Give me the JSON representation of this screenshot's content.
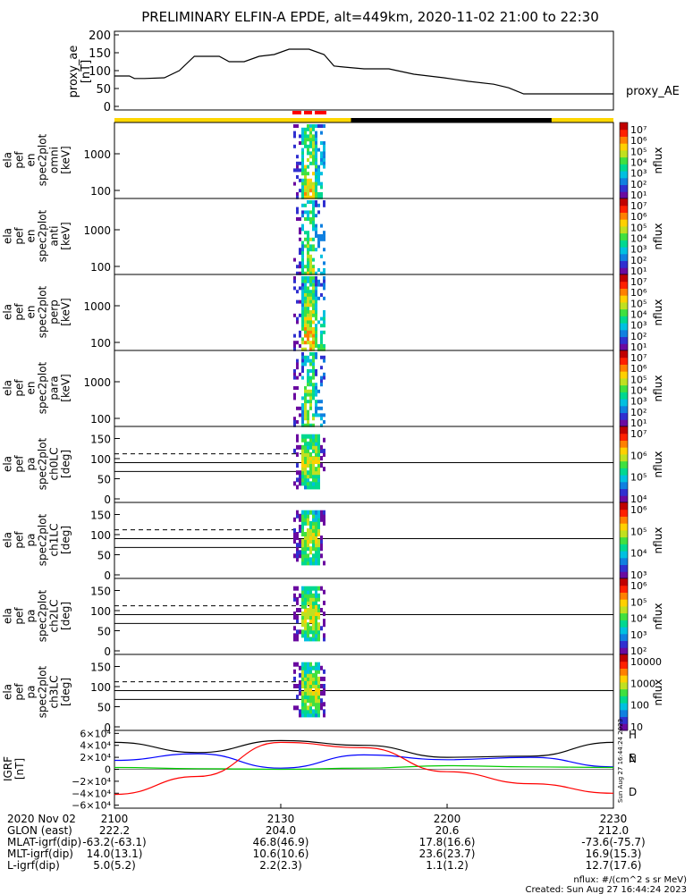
{
  "title": "PRELIMINARY ELFIN-A EPDE, alt=449km, 2020-11-02 21:00 to 22:30",
  "colors": {
    "sunlight_bar": "#ffd700",
    "shadow_bar": "#000000",
    "science_zone": "#ff0000",
    "h_component": "#000000",
    "n_component": "#0000ff",
    "e_component": "#00cc00",
    "d_component": "#ff0000"
  },
  "colorbar_colors": [
    "#ffffff",
    "#6a0aa0",
    "#3030d0",
    "#1080e0",
    "#00c0e0",
    "#00d890",
    "#40e040",
    "#c0e020",
    "#ffd000",
    "#ff8000",
    "#ff2000",
    "#c00000"
  ],
  "proxy_ae": {
    "ylabel": "proxy_ae",
    "unit": "[nT]",
    "series_label": "proxy_AE",
    "yticks": [
      "200",
      "150",
      "100",
      "50",
      "0"
    ],
    "ylim": [
      -10,
      210
    ],
    "x": [
      0,
      0.03,
      0.04,
      0.06,
      0.1,
      0.13,
      0.16,
      0.18,
      0.21,
      0.23,
      0.26,
      0.29,
      0.32,
      0.35,
      0.36,
      0.39,
      0.42,
      0.44,
      0.46,
      0.5,
      0.55,
      0.6,
      0.66,
      0.71,
      0.76,
      0.79,
      0.82,
      0.86,
      0.9,
      1.0
    ],
    "y": [
      85,
      85,
      78,
      78,
      80,
      100,
      140,
      140,
      140,
      125,
      125,
      140,
      145,
      160,
      160,
      160,
      145,
      113,
      110,
      105,
      105,
      90,
      80,
      70,
      62,
      52,
      35,
      35,
      35,
      35
    ]
  },
  "spec_panels": [
    {
      "ylabel": [
        "ela",
        "pef",
        "en",
        "spec2plot",
        "omni"
      ],
      "unit": "[keV]",
      "yticks": [
        "1000",
        "100"
      ],
      "cbar_label": "nflux",
      "cbar_ticks": [
        "10⁷",
        "10⁶",
        "10⁵",
        "10⁴",
        "10³",
        "10²",
        "10¹"
      ]
    },
    {
      "ylabel": [
        "ela",
        "pef",
        "en",
        "spec2plot",
        "anti"
      ],
      "unit": "[keV]",
      "yticks": [
        "1000",
        "100"
      ],
      "cbar_label": "nflux",
      "cbar_ticks": [
        "10⁷",
        "10⁶",
        "10⁵",
        "10⁴",
        "10³",
        "10²",
        "10¹"
      ]
    },
    {
      "ylabel": [
        "ela",
        "pef",
        "en",
        "spec2plot",
        "perp"
      ],
      "unit": "[keV]",
      "yticks": [
        "1000",
        "100"
      ],
      "cbar_label": "nflux",
      "cbar_ticks": [
        "10⁷",
        "10⁶",
        "10⁵",
        "10⁴",
        "10³",
        "10²",
        "10¹"
      ]
    },
    {
      "ylabel": [
        "ela",
        "pef",
        "en",
        "spec2plot",
        "para"
      ],
      "unit": "[keV]",
      "yticks": [
        "1000",
        "100"
      ],
      "cbar_label": "nflux",
      "cbar_ticks": [
        "10⁷",
        "10⁶",
        "10⁵",
        "10⁴",
        "10³",
        "10²",
        "10¹"
      ]
    }
  ],
  "pa_panels": [
    {
      "ylabel": [
        "ela",
        "pef",
        "pa",
        "spec2plot",
        "ch0LC"
      ],
      "unit": "[deg]",
      "yticks": [
        "150",
        "100",
        "50",
        "0"
      ],
      "cbar_label": "nflux",
      "cbar_ticks": [
        "10⁷",
        "10⁶",
        "10⁵",
        "10⁴"
      ]
    },
    {
      "ylabel": [
        "ela",
        "pef",
        "pa",
        "spec2plot",
        "ch1LC"
      ],
      "unit": "[deg]",
      "yticks": [
        "150",
        "100",
        "50",
        "0"
      ],
      "cbar_label": "nflux",
      "cbar_ticks": [
        "10⁶",
        "10⁵",
        "10⁴",
        "10³"
      ]
    },
    {
      "ylabel": [
        "ela",
        "pef",
        "pa",
        "spec2plot",
        "ch2LC"
      ],
      "unit": "[deg]",
      "yticks": [
        "150",
        "100",
        "50",
        "0"
      ],
      "cbar_label": "nflux",
      "cbar_ticks": [
        "10⁶",
        "10⁵",
        "10⁴",
        "10³",
        "10²"
      ]
    },
    {
      "ylabel": [
        "ela",
        "pef",
        "pa",
        "spec2plot",
        "ch3LC"
      ],
      "unit": "[deg]",
      "yticks": [
        "150",
        "100",
        "50",
        "0"
      ],
      "cbar_label": "nflux",
      "cbar_ticks": [
        "10000",
        "1000",
        "100",
        "10"
      ]
    }
  ],
  "igrf": {
    "ylabel": "IGRF",
    "unit": "[nT]",
    "yticks": [
      "6×10⁴",
      "4×10⁴",
      "2×10⁴",
      "0",
      "−2×10⁴",
      "−4×10⁴",
      "−6×10⁴"
    ],
    "legend": [
      "H",
      "N",
      "E",
      "D"
    ],
    "stamp": "Sun Aug 27 16:44:24 2023"
  },
  "chart_data": [
    {
      "type": "line",
      "title": "PRELIMINARY ELFIN-A EPDE, alt=449km, 2020-11-02 21:00 to 22:30",
      "ylabel": "proxy_ae [nT]",
      "ylim": [
        -10,
        210
      ],
      "series": [
        {
          "name": "proxy_AE",
          "x": [
            "21:00",
            "21:03",
            "21:04",
            "21:05",
            "21:09",
            "21:12",
            "21:14",
            "21:16",
            "21:19",
            "21:21",
            "21:23",
            "21:26",
            "21:29",
            "21:32",
            "21:32",
            "21:35",
            "21:38",
            "21:40",
            "21:41",
            "21:45",
            "21:50",
            "21:54",
            "21:59",
            "22:04",
            "22:08",
            "22:11",
            "22:14",
            "22:17",
            "22:21",
            "22:30"
          ],
          "values": [
            85,
            85,
            78,
            78,
            80,
            100,
            140,
            140,
            140,
            125,
            125,
            140,
            145,
            160,
            160,
            160,
            145,
            113,
            110,
            105,
            105,
            90,
            80,
            70,
            62,
            52,
            35,
            35,
            35,
            35
          ]
        }
      ]
    },
    {
      "type": "line",
      "ylabel": "IGRF [nT]",
      "ylim": [
        -65000,
        65000
      ],
      "series": [
        {
          "name": "H",
          "x": [
            "21:00",
            "21:15",
            "21:30",
            "21:45",
            "22:00",
            "22:15",
            "22:30"
          ],
          "values": [
            45000,
            28000,
            48000,
            40000,
            20000,
            22000,
            45000
          ]
        },
        {
          "name": "N",
          "x": [
            "21:00",
            "21:15",
            "21:30",
            "21:45",
            "22:00",
            "22:15",
            "22:30"
          ],
          "values": [
            15000,
            26000,
            2000,
            24000,
            16000,
            20000,
            4000
          ]
        },
        {
          "name": "E",
          "x": [
            "21:00",
            "21:15",
            "21:30",
            "21:45",
            "22:00",
            "22:15",
            "22:30"
          ],
          "values": [
            3000,
            1000,
            0,
            2000,
            6000,
            4000,
            3000
          ]
        },
        {
          "name": "D",
          "x": [
            "21:00",
            "21:15",
            "21:30",
            "21:45",
            "22:00",
            "22:15",
            "22:30"
          ],
          "values": [
            -42000,
            -12000,
            45000,
            36000,
            -4000,
            -24000,
            -40000
          ]
        }
      ]
    }
  ],
  "orbit_table": {
    "row_labels": [
      "2020 Nov 02",
      "GLON (east)",
      "MLAT-igrf(dip)",
      "MLT-igrf(dip)",
      "L-igrf(dip)"
    ],
    "x_ticks": [
      "2100",
      "2130",
      "2200",
      "2230"
    ],
    "rows": [
      [
        "222.2",
        "204.0",
        "20.6",
        "212.0"
      ],
      [
        "-63.2(-63.1)",
        "46.8(46.9)",
        "17.8(16.6)",
        "-73.6(-75.7)"
      ],
      [
        "14.0(13.1)",
        "10.6(10.6)",
        "23.6(23.7)",
        "16.9(15.3)"
      ],
      [
        "5.0(5.2)",
        "2.2(2.3)",
        "1.1(1.2)",
        "12.7(17.6)"
      ]
    ]
  },
  "footer": {
    "units": "nflux: #/(cm^2 s sr MeV)",
    "created": "Created: Sun Aug 27 16:44:24 2023"
  }
}
